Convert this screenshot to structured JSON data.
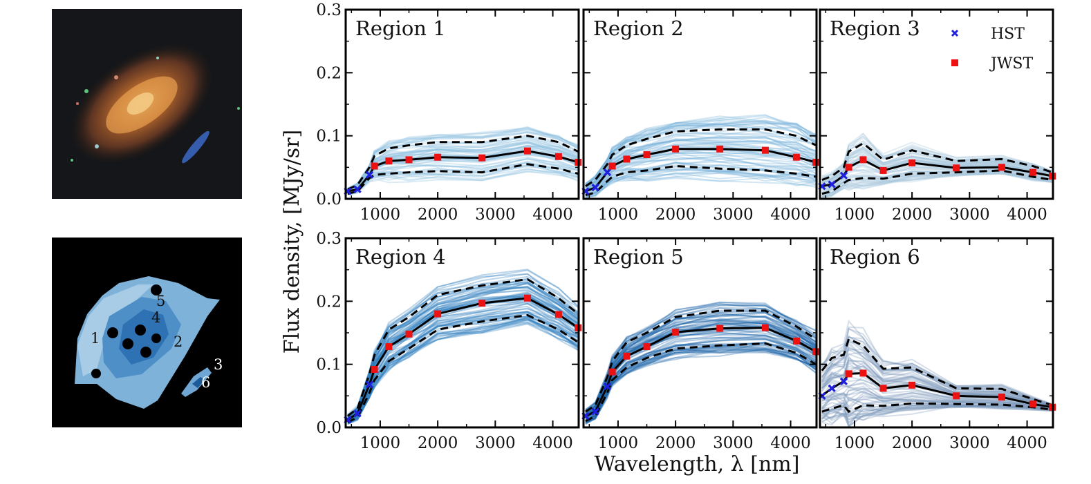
{
  "chart_data": {
    "type": "line",
    "layout": "2x3 grid of panels with shared axes",
    "xlabel": "Wavelength, λ [nm]",
    "ylabel": "Flux density, [MJy/sr]",
    "xlim": [
      400,
      4450
    ],
    "ylim": [
      0,
      0.3
    ],
    "xticks": [
      1000,
      2000,
      3000,
      4000
    ],
    "xtick_labels": [
      "1000",
      "2000",
      "3000",
      "4000"
    ],
    "yticks": [
      0.0,
      0.1,
      0.2,
      0.3
    ],
    "ytick_labels": [
      "0.0",
      "0.1",
      "0.2",
      "0.3"
    ],
    "legend": {
      "position": "top-right of Region 3",
      "entries": [
        {
          "label": "HST",
          "marker": "x",
          "color": "#1f1fe0"
        },
        {
          "label": "JWST",
          "marker": "square",
          "color": "#ee1111"
        }
      ]
    },
    "hst_wavelengths": [
      435,
      606,
      814
    ],
    "jwst_wavelengths": [
      900,
      1150,
      1500,
      2000,
      2770,
      3560,
      4100,
      4440
    ],
    "panels": [
      {
        "title": "Region 1",
        "color": "#8fc0e0",
        "hst": [
          0.012,
          0.015,
          0.038
        ],
        "jwst": [
          0.052,
          0.06,
          0.062,
          0.066,
          0.065,
          0.076,
          0.067,
          0.058
        ],
        "lower": [
          0.008,
          0.012,
          0.033,
          0.038,
          0.04,
          0.042,
          0.044,
          0.042,
          0.055,
          0.048,
          0.04
        ],
        "upper": [
          0.015,
          0.022,
          0.05,
          0.068,
          0.08,
          0.085,
          0.09,
          0.09,
          0.1,
          0.09,
          0.075
        ]
      },
      {
        "title": "Region 2",
        "color": "#75b1da",
        "hst": [
          0.012,
          0.018,
          0.042
        ],
        "jwst": [
          0.052,
          0.063,
          0.07,
          0.079,
          0.079,
          0.077,
          0.066,
          0.058
        ],
        "lower": [
          0.006,
          0.01,
          0.028,
          0.035,
          0.042,
          0.045,
          0.052,
          0.048,
          0.045,
          0.04,
          0.035
        ],
        "upper": [
          0.02,
          0.03,
          0.055,
          0.07,
          0.085,
          0.095,
          0.107,
          0.11,
          0.11,
          0.1,
          0.085
        ]
      },
      {
        "title": "Region 3",
        "color": "#a9c6dc",
        "hst": [
          0.02,
          0.023,
          0.037
        ],
        "jwst": [
          0.05,
          0.062,
          0.045,
          0.057,
          0.049,
          0.05,
          0.042,
          0.036
        ],
        "lower": [
          0.008,
          0.012,
          0.025,
          0.03,
          0.033,
          0.032,
          0.04,
          0.042,
          0.045,
          0.035,
          0.03
        ],
        "upper": [
          0.03,
          0.036,
          0.05,
          0.075,
          0.088,
          0.062,
          0.077,
          0.06,
          0.063,
          0.052,
          0.042
        ]
      },
      {
        "title": "Region 4",
        "color": "#2c7cbf",
        "hst": [
          0.012,
          0.022,
          0.068
        ],
        "jwst": [
          0.092,
          0.128,
          0.148,
          0.18,
          0.197,
          0.205,
          0.179,
          0.158
        ],
        "lower": [
          0.008,
          0.016,
          0.055,
          0.075,
          0.105,
          0.125,
          0.155,
          0.168,
          0.178,
          0.155,
          0.135
        ],
        "upper": [
          0.018,
          0.03,
          0.085,
          0.115,
          0.155,
          0.175,
          0.21,
          0.225,
          0.235,
          0.205,
          0.18
        ]
      },
      {
        "title": "Region 5",
        "color": "#1c62a8",
        "hst": [
          0.018,
          0.025,
          0.065
        ],
        "jwst": [
          0.088,
          0.113,
          0.128,
          0.151,
          0.157,
          0.158,
          0.137,
          0.12
        ],
        "lower": [
          0.01,
          0.018,
          0.055,
          0.075,
          0.095,
          0.11,
          0.125,
          0.13,
          0.133,
          0.118,
          0.1
        ],
        "upper": [
          0.025,
          0.035,
          0.08,
          0.105,
          0.135,
          0.15,
          0.175,
          0.185,
          0.185,
          0.16,
          0.14
        ]
      },
      {
        "title": "Region 6",
        "color": "#7d98bb",
        "hst": [
          0.05,
          0.062,
          0.073
        ],
        "jwst": [
          0.085,
          0.086,
          0.062,
          0.067,
          0.05,
          0.048,
          0.037,
          0.032
        ],
        "lower": [
          0.025,
          0.03,
          0.035,
          0.025,
          0.035,
          0.034,
          0.038,
          0.037,
          0.036,
          0.032,
          0.028
        ],
        "upper": [
          0.09,
          0.11,
          0.115,
          0.14,
          0.13,
          0.093,
          0.095,
          0.062,
          0.061,
          0.045,
          0.035
        ]
      }
    ]
  },
  "segmentation_labels": [
    "1",
    "2",
    "3",
    "4",
    "5",
    "6"
  ]
}
